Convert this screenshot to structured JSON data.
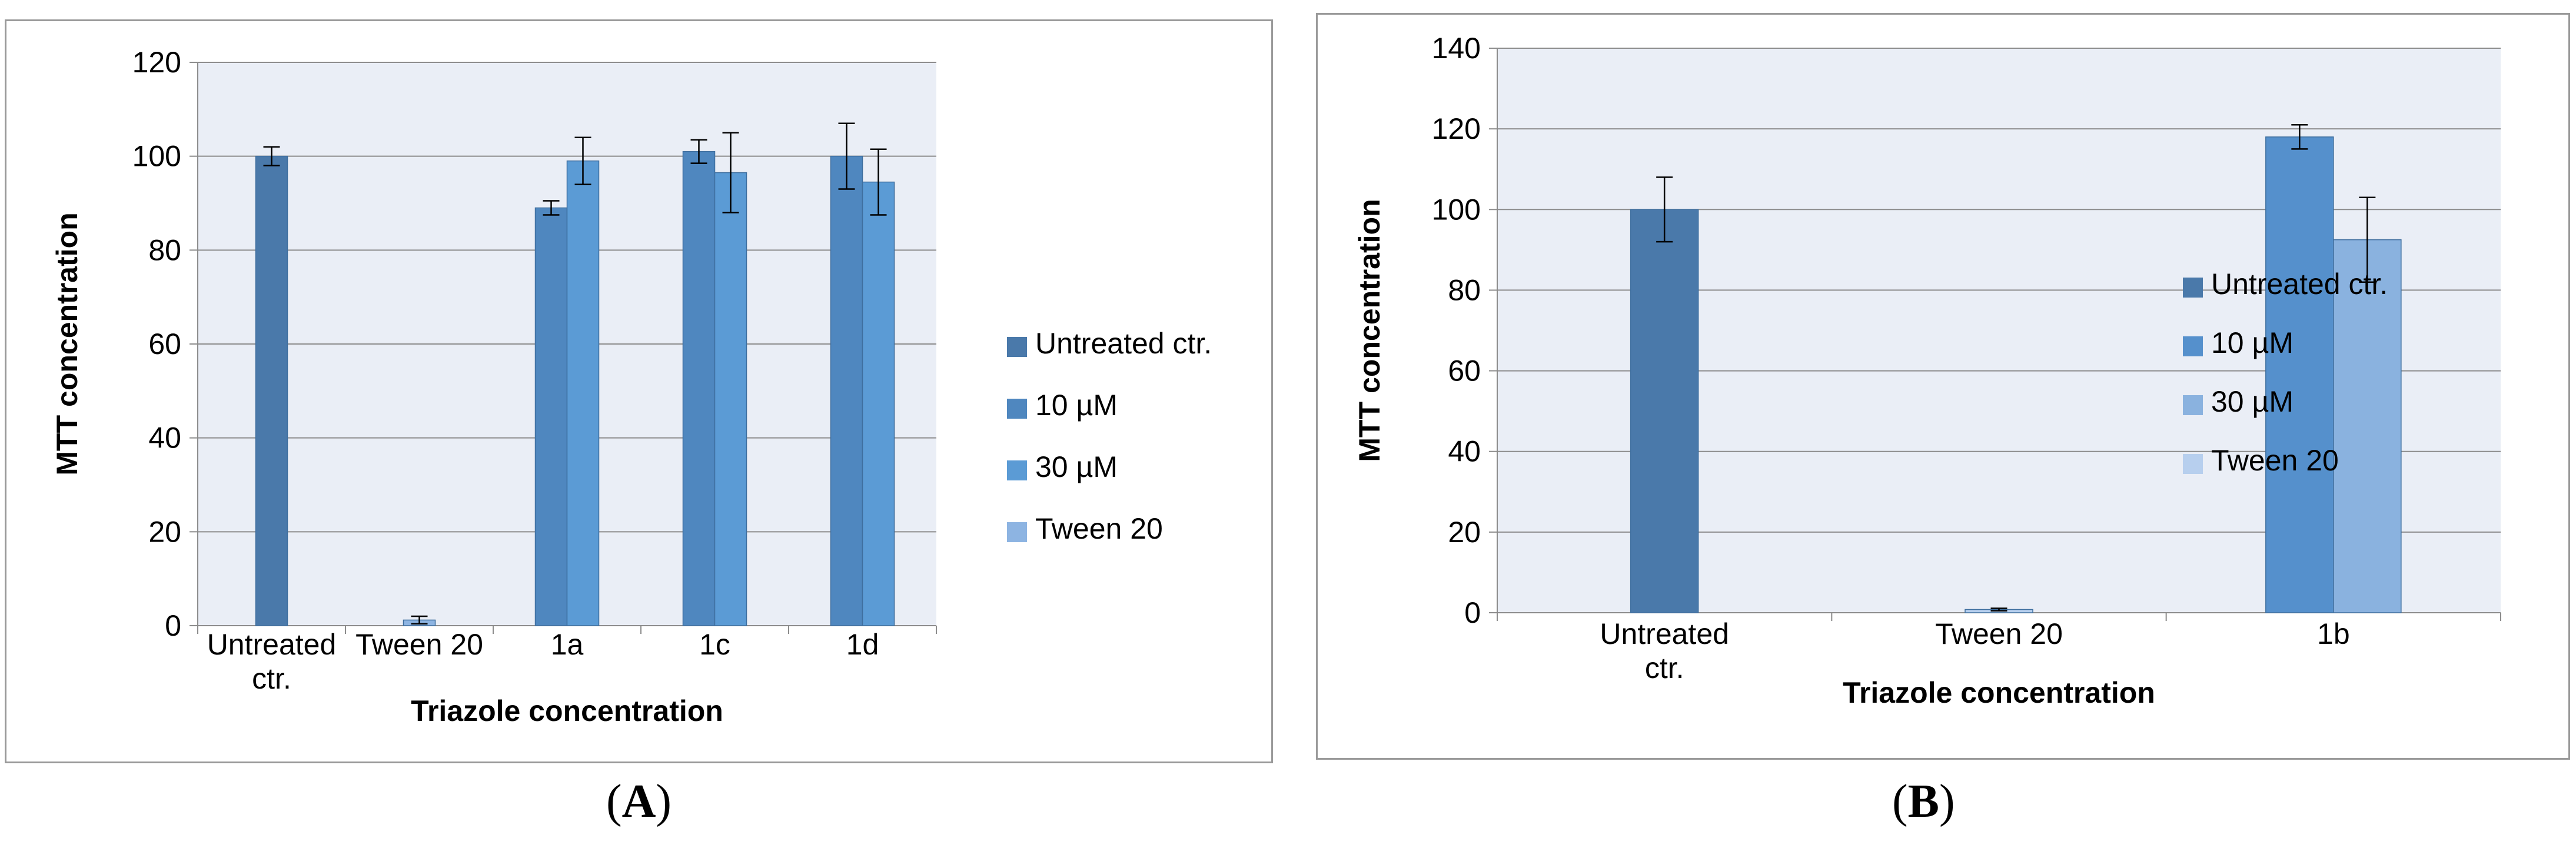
{
  "figure": {
    "panels": [
      {
        "caption": "A"
      },
      {
        "caption": "B"
      }
    ]
  },
  "chart_data": [
    {
      "type": "bar",
      "panel": "A",
      "title": "",
      "xlabel": "Triazole concentration",
      "ylabel": "MTT concentration",
      "ylim": [
        0,
        120
      ],
      "ytick_step": 20,
      "grid": true,
      "legend_position": "right",
      "categories": [
        "Untreated ctr.",
        "Tween 20",
        "1a",
        "1c",
        "1d"
      ],
      "category_labels": [
        [
          "Untreated",
          "ctr."
        ],
        [
          "Tween 20"
        ],
        [
          "1a"
        ],
        [
          "1c"
        ],
        [
          "1d"
        ]
      ],
      "series": [
        {
          "name": "Untreated ctr.",
          "color": "#4a79aa",
          "values": [
            100,
            null,
            null,
            null,
            null
          ],
          "errors": [
            2,
            null,
            null,
            null,
            null
          ]
        },
        {
          "name": "10 µM",
          "color": "#4f87bf",
          "values": [
            null,
            null,
            89,
            101,
            100
          ],
          "errors": [
            null,
            null,
            1.5,
            2.5,
            7
          ]
        },
        {
          "name": "30 µM",
          "color": "#5b9bd5",
          "values": [
            null,
            null,
            99,
            96.5,
            94.5
          ],
          "errors": [
            null,
            null,
            5,
            8.5,
            7
          ]
        },
        {
          "name": "Tween 20",
          "color": "#8db4e2",
          "values": [
            null,
            1.2,
            null,
            null,
            null
          ],
          "errors": [
            null,
            0.8,
            null,
            null,
            null
          ]
        }
      ]
    },
    {
      "type": "bar",
      "panel": "B",
      "title": "",
      "xlabel": "Triazole concentration",
      "ylabel": "MTT concentration",
      "ylim": [
        0,
        140
      ],
      "ytick_step": 20,
      "grid": true,
      "legend_position": "right",
      "categories": [
        "Untreated ctr.",
        "Tween 20",
        "1b"
      ],
      "category_labels": [
        [
          "Untreated",
          "ctr."
        ],
        [
          "Tween 20"
        ],
        [
          "1b"
        ]
      ],
      "series": [
        {
          "name": "Untreated ctr.",
          "color": "#4a79aa",
          "values": [
            100,
            null,
            null
          ],
          "errors": [
            8,
            null,
            null
          ]
        },
        {
          "name": "10 µM",
          "color": "#5590cc",
          "values": [
            null,
            null,
            118
          ],
          "errors": [
            null,
            null,
            3
          ]
        },
        {
          "name": "30 µM",
          "color": "#8ab2df",
          "values": [
            null,
            null,
            92.5
          ],
          "errors": [
            null,
            null,
            10.5
          ]
        },
        {
          "name": "Tween 20",
          "color": "#b7cfee",
          "values": [
            null,
            0.8,
            null
          ],
          "errors": [
            null,
            0.3,
            null
          ]
        }
      ]
    }
  ]
}
